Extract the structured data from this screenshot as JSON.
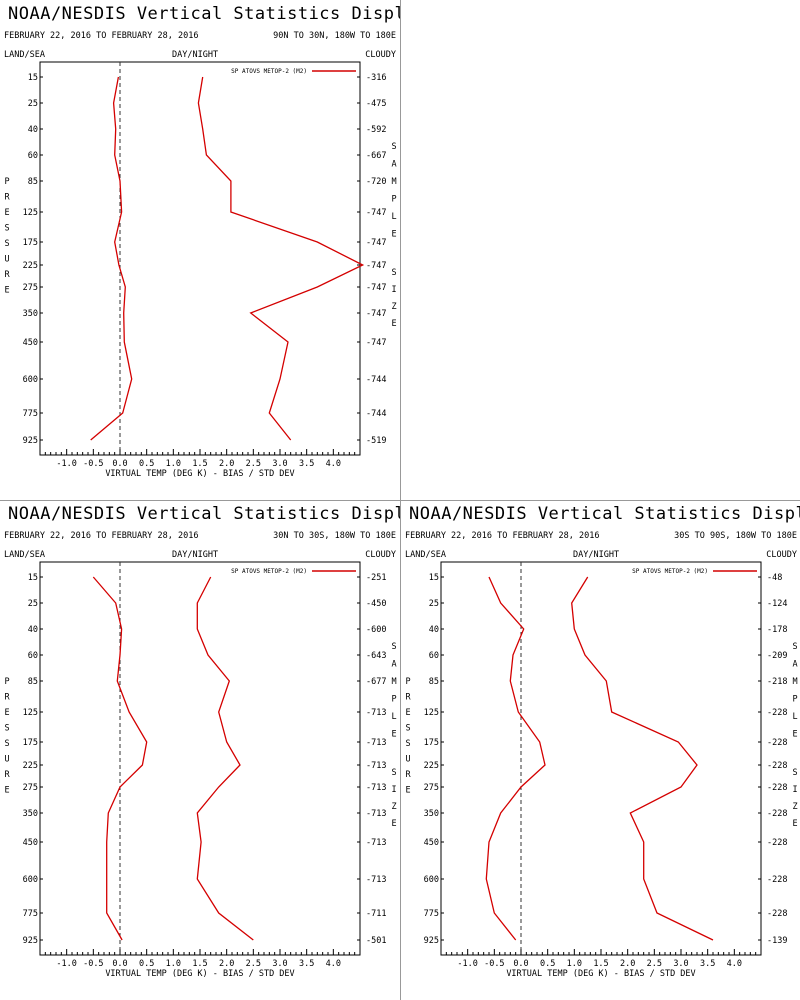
{
  "chart_data": [
    {
      "type": "line",
      "title": "NOAA/NESDIS Vertical Statistics Display",
      "date_range": "FEBRUARY 22, 2016 TO FEBRUARY 28, 2016",
      "region": "90N TO 30N, 180W TO 180E",
      "corner_labels": {
        "left": "LAND/SEA",
        "center": "DAY/NIGHT",
        "right": "CLOUDY"
      },
      "xlabel": "VIRTUAL TEMP (DEG K) - BIAS / STD DEV",
      "ylabel": "PRESSURE",
      "right_label": "SAMPLE SIZE",
      "xlim": [
        -1.5,
        4.5
      ],
      "xticks": [
        "-1.0",
        "-0.5",
        "0.0",
        "0.5",
        "1.0",
        "1.5",
        "2.0",
        "2.5",
        "3.0",
        "3.5",
        "4.0"
      ],
      "pressure_levels": [
        "15",
        "25",
        "40",
        "60",
        "85",
        "125",
        "175",
        "225",
        "275",
        "350",
        "450",
        "600",
        "775",
        "925"
      ],
      "sample_size": [
        "316",
        "475",
        "592",
        "667",
        "720",
        "747",
        "747",
        "747",
        "747",
        "747",
        "747",
        "744",
        "744",
        "519"
      ],
      "legend": "SP ATOVS METOP-2 (M2)",
      "series": [
        {
          "name": "bias",
          "values": [
            -0.03,
            -0.12,
            -0.08,
            -0.1,
            0.0,
            0.03,
            -0.1,
            -0.02,
            0.1,
            0.07,
            0.08,
            0.22,
            0.05,
            -0.55
          ]
        },
        {
          "name": "std_dev",
          "values": [
            1.55,
            1.47,
            1.55,
            1.62,
            2.08,
            2.08,
            3.7,
            4.55,
            3.7,
            2.45,
            3.15,
            3.0,
            2.8,
            3.2
          ]
        }
      ]
    },
    {
      "type": "line",
      "title": "NOAA/NESDIS Vertical Statistics Display",
      "date_range": "FEBRUARY 22, 2016 TO FEBRUARY 28, 2016",
      "region": "30N TO 30S, 180W TO 180E",
      "corner_labels": {
        "left": "LAND/SEA",
        "center": "DAY/NIGHT",
        "right": "CLOUDY"
      },
      "xlabel": "VIRTUAL TEMP (DEG K) - BIAS / STD DEV",
      "ylabel": "PRESSURE",
      "right_label": "SAMPLE SIZE",
      "xlim": [
        -1.5,
        4.5
      ],
      "xticks": [
        "-1.0",
        "-0.5",
        "0.0",
        "0.5",
        "1.0",
        "1.5",
        "2.0",
        "2.5",
        "3.0",
        "3.5",
        "4.0"
      ],
      "pressure_levels": [
        "15",
        "25",
        "40",
        "60",
        "85",
        "125",
        "175",
        "225",
        "275",
        "350",
        "450",
        "600",
        "775",
        "925"
      ],
      "sample_size": [
        "251",
        "450",
        "600",
        "643",
        "677",
        "713",
        "713",
        "713",
        "713",
        "713",
        "713",
        "713",
        "711",
        "501"
      ],
      "legend": "SP ATOVS METOP-2 (M2)",
      "series": [
        {
          "name": "bias",
          "values": [
            -0.5,
            -0.08,
            0.03,
            0.0,
            -0.05,
            0.17,
            0.5,
            0.42,
            0.0,
            -0.22,
            -0.25,
            -0.25,
            -0.25,
            0.04
          ]
        },
        {
          "name": "std_dev",
          "values": [
            1.7,
            1.45,
            1.45,
            1.65,
            2.05,
            1.85,
            2.0,
            2.25,
            1.85,
            1.45,
            1.52,
            1.45,
            1.85,
            2.5
          ]
        }
      ]
    },
    {
      "type": "line",
      "title": "NOAA/NESDIS Vertical Statistics Display",
      "date_range": "FEBRUARY 22, 2016 TO FEBRUARY 28, 2016",
      "region": "30S TO 90S, 180W TO 180E",
      "corner_labels": {
        "left": "LAND/SEA",
        "center": "DAY/NIGHT",
        "right": "CLOUDY"
      },
      "xlabel": "VIRTUAL TEMP (DEG K) - BIAS / STD DEV",
      "ylabel": "PRESSURE",
      "right_label": "SAMPLE SIZE",
      "xlim": [
        -1.5,
        4.5
      ],
      "xticks": [
        "-1.0",
        "-0.5",
        "0.0",
        "0.5",
        "1.0",
        "1.5",
        "2.0",
        "2.5",
        "3.0",
        "3.5",
        "4.0"
      ],
      "pressure_levels": [
        "15",
        "25",
        "40",
        "60",
        "85",
        "125",
        "175",
        "225",
        "275",
        "350",
        "450",
        "600",
        "775",
        "925"
      ],
      "sample_size": [
        "48",
        "124",
        "178",
        "209",
        "218",
        "228",
        "228",
        "228",
        "228",
        "228",
        "228",
        "228",
        "228",
        "139"
      ],
      "legend": "SP ATOVS METOP-2 (M2)",
      "series": [
        {
          "name": "bias",
          "values": [
            -0.6,
            -0.38,
            0.05,
            -0.15,
            -0.2,
            -0.05,
            0.35,
            0.45,
            0.0,
            -0.38,
            -0.6,
            -0.65,
            -0.5,
            -0.1
          ]
        },
        {
          "name": "std_dev",
          "values": [
            1.25,
            0.95,
            1.0,
            1.2,
            1.6,
            1.7,
            2.95,
            3.3,
            3.0,
            2.05,
            2.3,
            2.3,
            2.55,
            3.6
          ]
        }
      ]
    }
  ]
}
